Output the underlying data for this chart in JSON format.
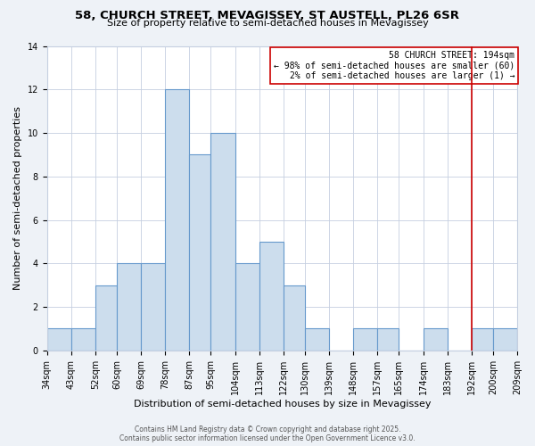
{
  "title": "58, CHURCH STREET, MEVAGISSEY, ST AUSTELL, PL26 6SR",
  "subtitle": "Size of property relative to semi-detached houses in Mevagissey",
  "xlabel": "Distribution of semi-detached houses by size in Mevagissey",
  "ylabel": "Number of semi-detached properties",
  "bin_edges": [
    34,
    43,
    52,
    60,
    69,
    78,
    87,
    95,
    104,
    113,
    122,
    130,
    139,
    148,
    157,
    165,
    174,
    183,
    192,
    200,
    209
  ],
  "bin_labels": [
    "34sqm",
    "43sqm",
    "52sqm",
    "60sqm",
    "69sqm",
    "78sqm",
    "87sqm",
    "95sqm",
    "104sqm",
    "113sqm",
    "122sqm",
    "130sqm",
    "139sqm",
    "148sqm",
    "157sqm",
    "165sqm",
    "174sqm",
    "183sqm",
    "192sqm",
    "200sqm",
    "209sqm"
  ],
  "counts": [
    1,
    1,
    3,
    4,
    4,
    12,
    9,
    10,
    4,
    5,
    3,
    1,
    0,
    1,
    1,
    0,
    1,
    0,
    1,
    1
  ],
  "bar_color": "#ccdded",
  "bar_edge_color": "#6699cc",
  "red_line_x": 192,
  "red_line_color": "#cc0000",
  "annotation_title": "58 CHURCH STREET: 194sqm",
  "annotation_line1": "← 98% of semi-detached houses are smaller (60)",
  "annotation_line2": "2% of semi-detached houses are larger (1) →",
  "annotation_box_facecolor": "#ffffff",
  "annotation_box_edgecolor": "#cc0000",
  "ylim": [
    0,
    14
  ],
  "yticks": [
    0,
    2,
    4,
    6,
    8,
    10,
    12,
    14
  ],
  "footer1": "Contains HM Land Registry data © Crown copyright and database right 2025.",
  "footer2": "Contains public sector information licensed under the Open Government Licence v3.0.",
  "fig_facecolor": "#eef2f7",
  "plot_facecolor": "#ffffff",
  "grid_color": "#c5cfe0",
  "title_fontsize": 9.5,
  "subtitle_fontsize": 8,
  "ylabel_fontsize": 8,
  "xlabel_fontsize": 8,
  "tick_fontsize": 7,
  "annotation_fontsize": 7,
  "footer_fontsize": 5.5
}
